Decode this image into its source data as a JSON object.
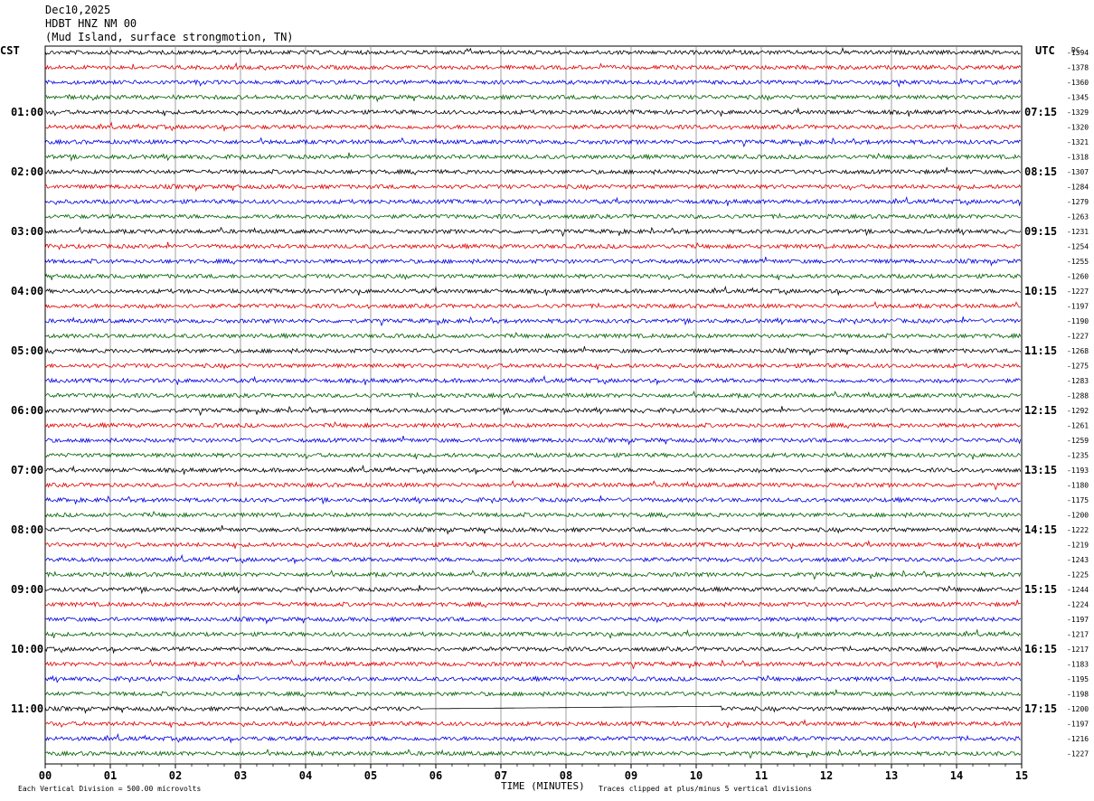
{
  "header": {
    "date": "Dec10,2025",
    "station": "HDBT HNZ NM 00",
    "location": "(Mud Island, surface strongmotion, TN)"
  },
  "left_tz": "CST",
  "right_tz": "UTC",
  "dc_label": "DC",
  "footer": {
    "scale": "Each Vertical Division =  500.00 microvolts",
    "xlabel": "TIME (MINUTES)",
    "clip": "Traces clipped at plus/minus 5 vertical divisions"
  },
  "colors": [
    "#000000",
    "#e00000",
    "#0000e0",
    "#006000"
  ],
  "chart_data": {
    "type": "line",
    "title": "HDBT HNZ NM 00",
    "xlabel": "TIME (MINUTES)",
    "xlim": [
      0,
      15
    ],
    "x_ticks": [
      "00",
      "01",
      "02",
      "03",
      "04",
      "05",
      "06",
      "07",
      "08",
      "09",
      "10",
      "11",
      "12",
      "13",
      "14",
      "15"
    ],
    "left_hour_labels": [
      "01:00",
      "02:00",
      "03:00",
      "04:00",
      "05:00",
      "06:00",
      "07:00",
      "08:00",
      "09:00",
      "10:00",
      "11:00"
    ],
    "right_hour_labels": [
      "07:15",
      "08:15",
      "09:15",
      "10:15",
      "11:15",
      "12:15",
      "13:15",
      "14:15",
      "15:15",
      "16:15",
      "17:15"
    ],
    "dc_offsets": [
      -1394,
      -1378,
      -1360,
      -1345,
      -1329,
      -1320,
      -1321,
      -1318,
      -1307,
      -1284,
      -1279,
      -1263,
      -1231,
      -1254,
      -1255,
      -1260,
      -1227,
      -1197,
      -1190,
      -1227,
      -1268,
      -1275,
      -1283,
      -1288,
      -1292,
      -1261,
      -1259,
      -1235,
      -1193,
      -1180,
      -1175,
      -1200,
      -1222,
      -1219,
      -1243,
      -1225,
      -1244,
      -1224,
      -1197,
      -1217,
      -1217,
      -1183,
      -1195,
      -1198,
      -1200,
      -1197,
      -1216,
      -1227
    ],
    "traces_per_hour": 4,
    "minutes_per_trace": 15,
    "grid": true,
    "gap": {
      "trace_index": 44,
      "from_minute": 5.8,
      "to_minute": 10.4
    }
  }
}
